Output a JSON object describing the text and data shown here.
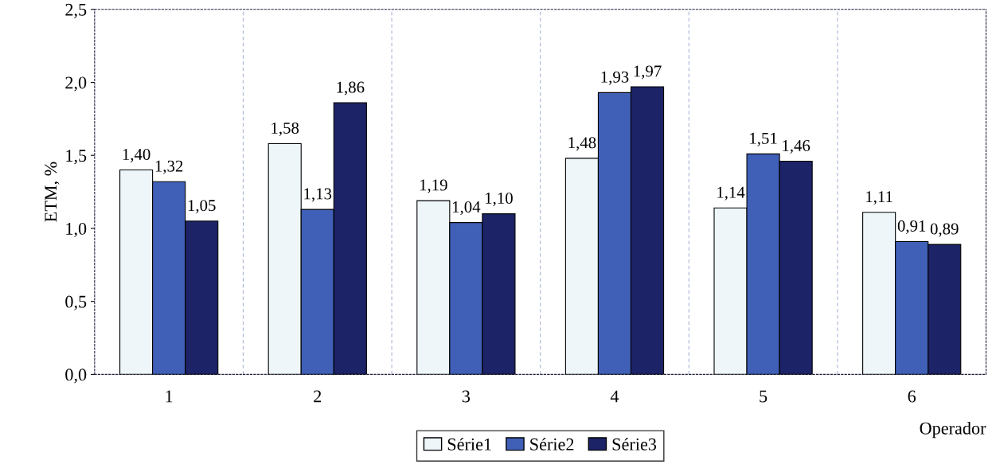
{
  "chart_data": {
    "type": "bar",
    "ylabel": "ETM, %",
    "xlabel": "Operador",
    "categories": [
      "1",
      "2",
      "3",
      "4",
      "5",
      "6"
    ],
    "series": [
      {
        "name": "Série1",
        "color": "#eef6fa",
        "values": [
          1.4,
          1.58,
          1.19,
          1.48,
          1.14,
          1.11
        ],
        "value_labels": [
          "1,40",
          "1,58",
          "1,19",
          "1,48",
          "1,14",
          "1,11"
        ]
      },
      {
        "name": "Série2",
        "color": "#4060b8",
        "values": [
          1.32,
          1.13,
          1.04,
          1.93,
          1.51,
          0.91
        ],
        "value_labels": [
          "1,32",
          "1,13",
          "1,04",
          "1,93",
          "1,51",
          "0,91"
        ]
      },
      {
        "name": "Série3",
        "color": "#1c2366",
        "values": [
          1.05,
          1.86,
          1.1,
          1.97,
          1.46,
          0.89
        ],
        "value_labels": [
          "1,05",
          "1,86",
          "1,10",
          "1,97",
          "1,46",
          "0,89"
        ]
      }
    ],
    "ylim": [
      0,
      2.5
    ],
    "yticks": [
      {
        "value": 0,
        "label": "0,0"
      },
      {
        "value": 0.5,
        "label": "0,5"
      },
      {
        "value": 1,
        "label": "1,0"
      },
      {
        "value": 1.5,
        "label": "1,5"
      },
      {
        "value": 2,
        "label": "2,0"
      },
      {
        "value": 2.5,
        "label": "2,5"
      }
    ],
    "grid": "x",
    "legend": "bottom"
  }
}
